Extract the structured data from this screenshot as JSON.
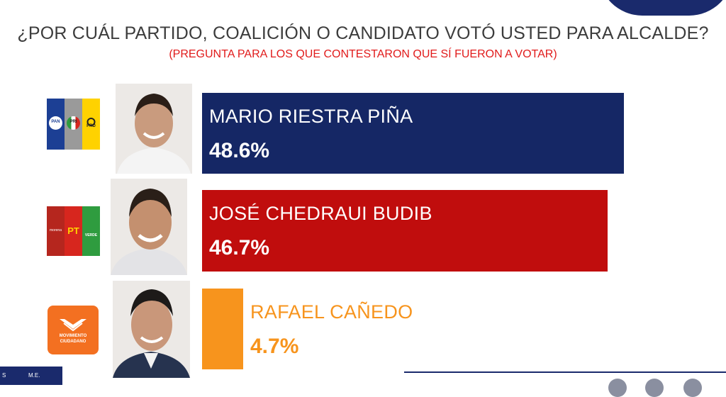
{
  "title": "¿POR CUÁL PARTIDO, COALICIÓN O CANDIDATO VOTÓ USTED PARA ALCALDE?",
  "subtitle": "(PREGUNTA PARA LOS QUE CONTESTARON QUE SÍ FUERON A VOTAR)",
  "chart_data": {
    "type": "bar",
    "orientation": "horizontal",
    "categories": [
      "MARIO RIESTRA PIÑA",
      "JOSÉ CHEDRAUI BUDIB",
      "RAFAEL CAÑEDO"
    ],
    "values": [
      48.6,
      46.7,
      4.7
    ],
    "value_labels": [
      "48.6%",
      "46.7%",
      "4.7%"
    ],
    "xlim": [
      0,
      50
    ],
    "grid": false,
    "bar_colors": [
      "#152765",
      "#c00d0d",
      "#f7941d"
    ],
    "name_colors": [
      "#ffffff",
      "#ffffff",
      "#f7941d"
    ]
  },
  "logos": [
    {
      "icon": "pan-pri-prd-coalition-logo",
      "labels": [
        "PAN",
        "PRI",
        "PRD"
      ],
      "colors": [
        "#1c3f94",
        "#9a9a9a",
        "#ffd200"
      ]
    },
    {
      "icon": "morena-pt-verde-coalition-logo",
      "labels": [
        "morena",
        "PT",
        "VERDE"
      ],
      "colors": [
        "#b5261e",
        "#d7261e",
        "#2f9c3f"
      ]
    },
    {
      "icon": "movimiento-ciudadano-logo",
      "labels": [
        "MOVIMIENTO",
        "CIUDADANO"
      ],
      "colors": [
        "#f37021"
      ]
    }
  ],
  "footer": {
    "tag_left": "S",
    "tag_text": "M.E."
  }
}
